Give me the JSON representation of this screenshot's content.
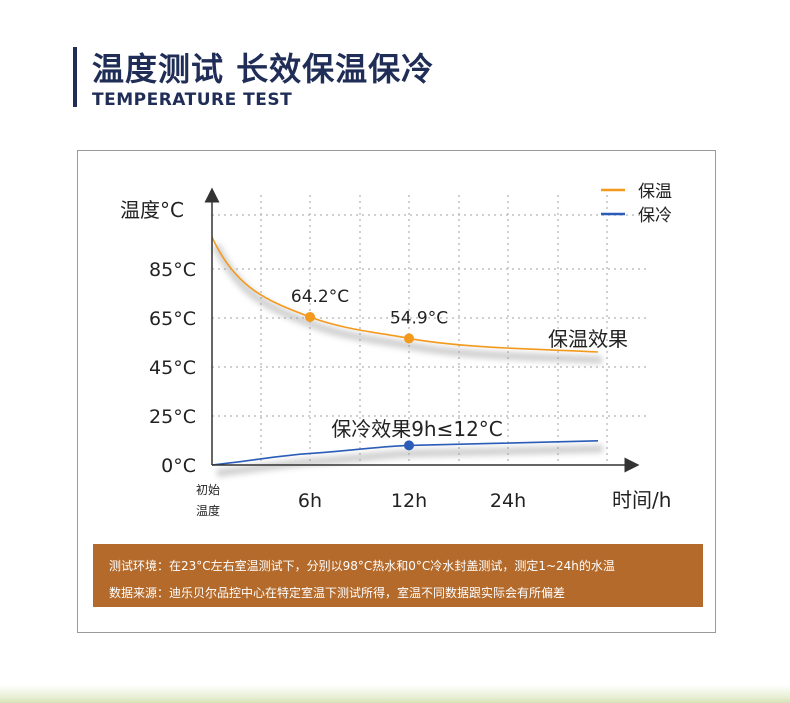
{
  "header": {
    "title": "温度测试 长效保温保冷",
    "subtitle": "TEMPERATURE TEST"
  },
  "colors": {
    "navy": "#1f2d57",
    "warm_series": "#f39a1e",
    "cold_series": "#2a5cb8",
    "note_bg": "#b36a2b",
    "grid": "#c8c8c8"
  },
  "chart_data": {
    "type": "line",
    "ylabel": "温度°C",
    "xlabel": "时间/h",
    "x_ticks": [
      "初始\n温度",
      "6h",
      "12h",
      "24h"
    ],
    "y_ticks": [
      "0°C",
      "25°C",
      "45°C",
      "65°C",
      "85°C"
    ],
    "legend_position": "top-right",
    "grid": true,
    "series": [
      {
        "name": "保温",
        "color": "#f39a1e",
        "x": [
          "初始温度",
          "6h",
          "12h",
          "24h"
        ],
        "values": [
          98,
          64.2,
          54.9,
          49
        ],
        "end_label": "保温效果",
        "points": [
          {
            "x": "6h",
            "y": 64.2,
            "label": "64.2°C"
          },
          {
            "x": "12h",
            "y": 54.9,
            "label": "54.9°C"
          }
        ]
      },
      {
        "name": "保冷",
        "color": "#2a5cb8",
        "x": [
          "初始温度",
          "6h",
          "12h",
          "24h"
        ],
        "values": [
          0,
          5,
          8.5,
          10.5
        ],
        "end_label": "保冷效果9h≤12°C",
        "points": [
          {
            "x": "12h",
            "y": 8.5,
            "label": ""
          }
        ]
      }
    ]
  },
  "notes": {
    "line1": "测试环境：在23°C左右室温测试下，分别以98°C热水和0°C冷水封盖测试，测定1~24h的水温",
    "line2": "数据来源：迪乐贝尔品控中心在特定室温下测试所得，室温不同数据跟实际会有所偏差"
  }
}
